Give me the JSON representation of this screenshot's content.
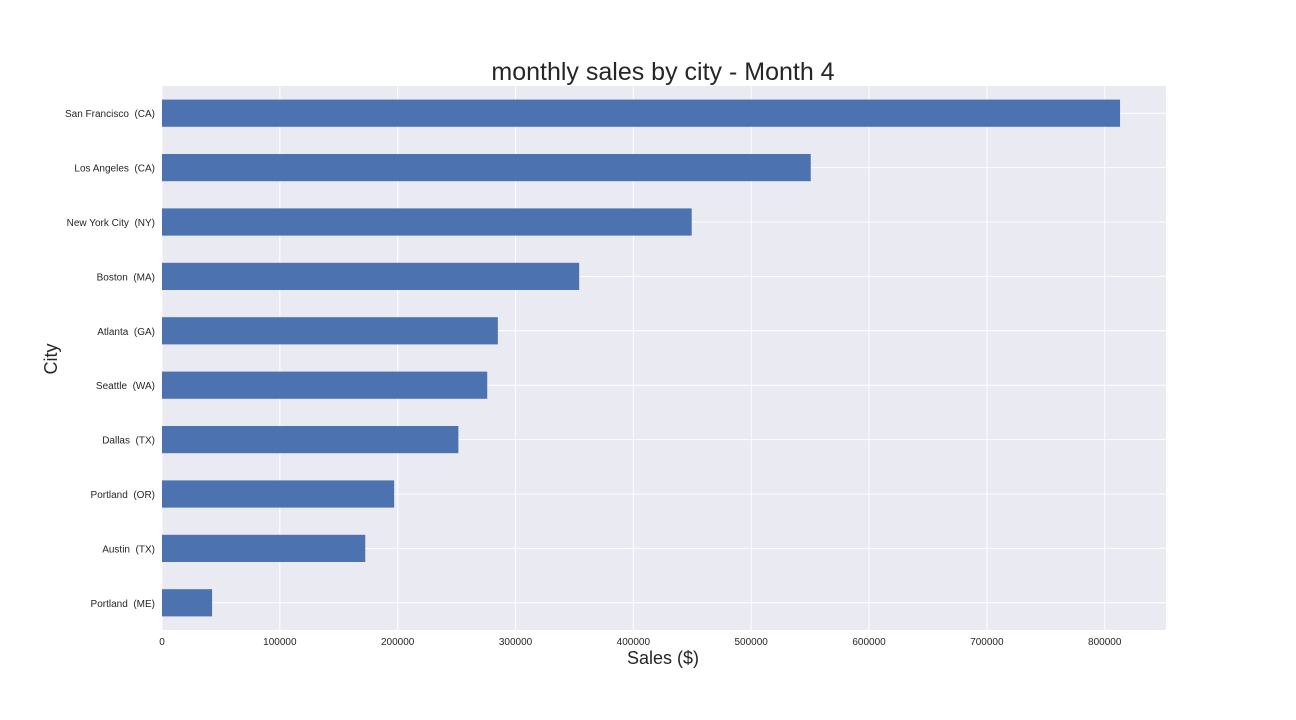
{
  "chart_data": {
    "type": "bar",
    "orientation": "horizontal",
    "title": "monthly sales by city - Month 4",
    "xlabel": "Sales ($)",
    "ylabel": "City",
    "categories": [
      "San Francisco  (CA)",
      "Los Angeles  (CA)",
      "New York City  (NY)",
      "Boston  (MA)",
      "Atlanta  (GA)",
      "Seattle  (WA)",
      "Dallas  (TX)",
      "Portland  (OR)",
      "Austin  (TX)",
      "Portland  (ME)"
    ],
    "values": [
      813000,
      550500,
      449500,
      354000,
      285000,
      276000,
      251500,
      197000,
      172500,
      42500
    ],
    "xlim": [
      0,
      852000
    ],
    "xticks": [
      0,
      100000,
      200000,
      300000,
      400000,
      500000,
      600000,
      700000,
      800000
    ],
    "xtick_labels": [
      "0",
      "100000",
      "200000",
      "300000",
      "400000",
      "500000",
      "600000",
      "700000",
      "800000"
    ],
    "grid": true,
    "colors": {
      "bar": "#4c72b0",
      "plot_background": "#eaeaf2",
      "grid": "#ffffff",
      "text": "#262626"
    }
  }
}
